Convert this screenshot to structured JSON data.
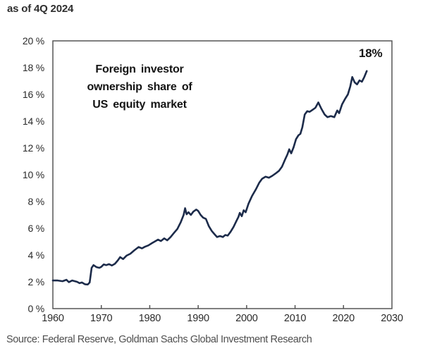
{
  "header": {
    "as_of": "as of 4Q 2024"
  },
  "chart": {
    "title_lines": [
      "Foreign investor",
      "ownership share of",
      "US equity market"
    ],
    "end_label": "18%"
  },
  "footer": {
    "source": "Source: Federal Reserve, Goldman Sachs Global Investment Research"
  },
  "colors": {
    "line": "#1c2b4a",
    "axis": "#555555",
    "tick_text": "#2b2b2b",
    "title_text": "#141414",
    "source_text": "#4f4f4f",
    "background": "#ffffff"
  },
  "chart_data": {
    "type": "line",
    "title": "Foreign investor ownership share of US equity market",
    "subtitle": "as of 4Q 2024",
    "xlabel": "",
    "ylabel": "%",
    "xlim": [
      1960,
      2030
    ],
    "ylim": [
      0,
      20
    ],
    "x_ticks": [
      1960,
      1970,
      1980,
      1990,
      2000,
      2010,
      2020,
      2030
    ],
    "y_ticks": [
      0,
      2,
      4,
      6,
      8,
      10,
      12,
      14,
      16,
      18,
      20
    ],
    "y_tick_suffix": " %",
    "grid": false,
    "legend": "none",
    "annotation": {
      "text": "18%",
      "x": 2024.8,
      "y": 17.75
    },
    "series": [
      {
        "name": "Foreign investor ownership share of US equity market",
        "points": [
          [
            1960.0,
            2.1
          ],
          [
            1961.0,
            2.1
          ],
          [
            1962.0,
            2.05
          ],
          [
            1962.8,
            2.15
          ],
          [
            1963.3,
            1.98
          ],
          [
            1964.0,
            2.1
          ],
          [
            1965.0,
            2.0
          ],
          [
            1965.5,
            1.9
          ],
          [
            1966.0,
            1.95
          ],
          [
            1966.6,
            1.82
          ],
          [
            1967.2,
            1.8
          ],
          [
            1967.6,
            1.95
          ],
          [
            1968.0,
            3.05
          ],
          [
            1968.4,
            3.25
          ],
          [
            1969.0,
            3.1
          ],
          [
            1969.6,
            3.05
          ],
          [
            1970.0,
            3.12
          ],
          [
            1970.5,
            3.3
          ],
          [
            1971.0,
            3.25
          ],
          [
            1971.6,
            3.32
          ],
          [
            1972.2,
            3.22
          ],
          [
            1972.8,
            3.35
          ],
          [
            1973.4,
            3.6
          ],
          [
            1973.9,
            3.85
          ],
          [
            1974.5,
            3.7
          ],
          [
            1975.2,
            3.95
          ],
          [
            1976.0,
            4.1
          ],
          [
            1976.8,
            4.35
          ],
          [
            1977.7,
            4.6
          ],
          [
            1978.4,
            4.5
          ],
          [
            1979.0,
            4.62
          ],
          [
            1979.7,
            4.72
          ],
          [
            1980.5,
            4.9
          ],
          [
            1981.2,
            5.05
          ],
          [
            1981.7,
            5.15
          ],
          [
            1982.3,
            5.05
          ],
          [
            1983.0,
            5.25
          ],
          [
            1983.6,
            5.1
          ],
          [
            1984.3,
            5.35
          ],
          [
            1985.0,
            5.65
          ],
          [
            1985.7,
            5.95
          ],
          [
            1986.4,
            6.45
          ],
          [
            1987.0,
            7.0
          ],
          [
            1987.3,
            7.5
          ],
          [
            1987.6,
            7.05
          ],
          [
            1988.0,
            7.2
          ],
          [
            1988.5,
            7.0
          ],
          [
            1989.0,
            7.25
          ],
          [
            1989.6,
            7.4
          ],
          [
            1990.0,
            7.3
          ],
          [
            1990.5,
            7.0
          ],
          [
            1991.0,
            6.8
          ],
          [
            1991.6,
            6.7
          ],
          [
            1992.2,
            6.15
          ],
          [
            1992.8,
            5.8
          ],
          [
            1993.4,
            5.55
          ],
          [
            1993.9,
            5.35
          ],
          [
            1994.5,
            5.42
          ],
          [
            1995.1,
            5.35
          ],
          [
            1995.6,
            5.5
          ],
          [
            1996.1,
            5.45
          ],
          [
            1996.7,
            5.75
          ],
          [
            1997.3,
            6.1
          ],
          [
            1997.9,
            6.55
          ],
          [
            1998.3,
            6.85
          ],
          [
            1998.6,
            7.15
          ],
          [
            1999.0,
            6.9
          ],
          [
            1999.4,
            7.35
          ],
          [
            1999.8,
            7.2
          ],
          [
            2000.4,
            7.85
          ],
          [
            2001.1,
            8.4
          ],
          [
            2001.9,
            8.9
          ],
          [
            2002.6,
            9.4
          ],
          [
            2003.2,
            9.7
          ],
          [
            2003.9,
            9.85
          ],
          [
            2004.6,
            9.78
          ],
          [
            2005.3,
            9.92
          ],
          [
            2006.0,
            10.1
          ],
          [
            2006.7,
            10.3
          ],
          [
            2007.3,
            10.6
          ],
          [
            2007.9,
            11.1
          ],
          [
            2008.4,
            11.5
          ],
          [
            2008.8,
            11.9
          ],
          [
            2009.2,
            11.6
          ],
          [
            2009.7,
            12.05
          ],
          [
            2010.2,
            12.65
          ],
          [
            2010.7,
            12.95
          ],
          [
            2011.1,
            13.05
          ],
          [
            2011.5,
            13.55
          ],
          [
            2012.0,
            14.5
          ],
          [
            2012.5,
            14.75
          ],
          [
            2013.0,
            14.7
          ],
          [
            2013.6,
            14.85
          ],
          [
            2014.2,
            15.0
          ],
          [
            2014.8,
            15.4
          ],
          [
            2015.4,
            14.95
          ],
          [
            2016.1,
            14.5
          ],
          [
            2016.7,
            14.3
          ],
          [
            2017.4,
            14.38
          ],
          [
            2018.1,
            14.3
          ],
          [
            2018.7,
            14.8
          ],
          [
            2019.1,
            14.6
          ],
          [
            2019.7,
            15.25
          ],
          [
            2020.3,
            15.65
          ],
          [
            2020.9,
            16.0
          ],
          [
            2021.4,
            16.6
          ],
          [
            2021.8,
            17.3
          ],
          [
            2022.3,
            16.9
          ],
          [
            2022.8,
            16.75
          ],
          [
            2023.3,
            17.05
          ],
          [
            2023.8,
            16.95
          ],
          [
            2024.3,
            17.3
          ],
          [
            2024.8,
            17.75
          ]
        ]
      }
    ]
  }
}
